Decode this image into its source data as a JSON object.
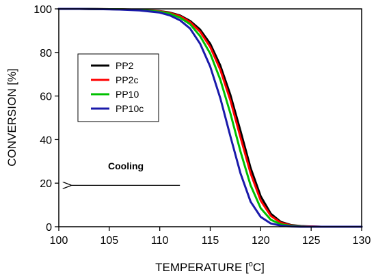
{
  "chart_data": {
    "type": "line",
    "title": "",
    "xlabel": "TEMPERATURE [",
    "xlabel_sup": "o",
    "xlabel_unit": "C]",
    "ylabel": "CONVERSION [%]",
    "xlim": [
      100,
      130
    ],
    "ylim": [
      0,
      100
    ],
    "xticks": [
      "100",
      "105",
      "110",
      "115",
      "120",
      "125",
      "130"
    ],
    "yticks": [
      "0",
      "20",
      "40",
      "60",
      "80",
      "100"
    ],
    "x": [
      100,
      102,
      104,
      106,
      108,
      110,
      111,
      112,
      113,
      114,
      115,
      116,
      117,
      118,
      119,
      120,
      121,
      122,
      123,
      124,
      125,
      126,
      127,
      128,
      129,
      130
    ],
    "series": [
      {
        "name": "PP2",
        "color": "#000000",
        "values": [
          100,
          100,
          99.9,
          99.8,
          99.6,
          99.0,
          98.3,
          97.0,
          94.5,
          90.5,
          84.0,
          74.0,
          60.5,
          44.0,
          27.0,
          14.0,
          6.0,
          2.2,
          0.8,
          0.3,
          0.1,
          0,
          0,
          0,
          0,
          0
        ]
      },
      {
        "name": "PP2c",
        "color": "#ff0000",
        "values": [
          100,
          100,
          99.9,
          99.8,
          99.5,
          98.9,
          98.1,
          96.7,
          94.0,
          89.5,
          82.5,
          72.0,
          58.0,
          41.0,
          24.5,
          12.0,
          5.0,
          1.8,
          0.6,
          0.2,
          0.1,
          0,
          0,
          0,
          0,
          0
        ]
      },
      {
        "name": "PP10",
        "color": "#00c000",
        "values": [
          100,
          100,
          99.9,
          99.8,
          99.5,
          98.7,
          97.8,
          96.0,
          93.0,
          87.5,
          79.5,
          67.5,
          52.0,
          34.5,
          19.0,
          8.5,
          3.2,
          1.1,
          0.4,
          0.1,
          0,
          0,
          0,
          0,
          0,
          0
        ]
      },
      {
        "name": "PP10c",
        "color": "#1a1aaa",
        "values": [
          100,
          100,
          99.9,
          99.7,
          99.3,
          98.3,
          97.0,
          94.8,
          91.0,
          84.0,
          73.5,
          59.0,
          41.5,
          24.5,
          11.5,
          4.5,
          1.5,
          0.5,
          0.1,
          0,
          0,
          0,
          0,
          0,
          0,
          0
        ]
      }
    ],
    "legend": "upper-left, inside plot",
    "grid": false,
    "annotation": {
      "text": "Cooling",
      "arrow_from_x": 112,
      "arrow_to_x": 101.2,
      "arrow_y": 19
    }
  }
}
